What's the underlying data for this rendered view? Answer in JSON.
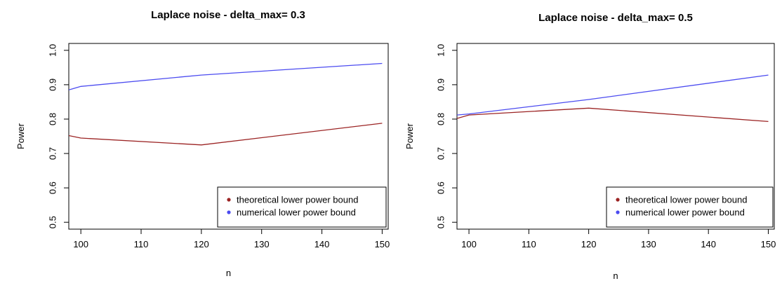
{
  "chart_data": [
    {
      "type": "line",
      "title": "Laplace noise - delta_max= 0.3",
      "xlabel": "n",
      "ylabel": "Power",
      "xlim": [
        98,
        151
      ],
      "ylim": [
        0.5,
        1.0
      ],
      "x_ticks": [
        100,
        110,
        120,
        130,
        140,
        150
      ],
      "y_ticks": [
        0.5,
        0.6,
        0.7,
        0.8,
        0.9,
        1.0
      ],
      "x_tick_labels": [
        "100",
        "110",
        "120",
        "130",
        "140",
        "150"
      ],
      "y_tick_labels": [
        "0.5",
        "0.6",
        "0.7",
        "0.8",
        "0.9",
        "1.0"
      ],
      "legend_position": "bottom-right",
      "series": [
        {
          "name": "theoretical lower power bound",
          "color": "#9b2323",
          "x": [
            98,
            100,
            120,
            150
          ],
          "y": [
            0.752,
            0.745,
            0.725,
            0.788
          ]
        },
        {
          "name": "numerical lower power bound",
          "color": "#4b4bf0",
          "x": [
            98,
            100,
            120,
            150
          ],
          "y": [
            0.885,
            0.895,
            0.928,
            0.962
          ]
        }
      ]
    },
    {
      "type": "line",
      "title": "Laplace noise - delta_max= 0.5",
      "xlabel": "n",
      "ylabel": "Power",
      "xlim": [
        98,
        151
      ],
      "ylim": [
        0.5,
        1.0
      ],
      "x_ticks": [
        100,
        110,
        120,
        130,
        140,
        150
      ],
      "y_ticks": [
        0.5,
        0.6,
        0.7,
        0.8,
        0.9,
        1.0
      ],
      "x_tick_labels": [
        "100",
        "110",
        "120",
        "130",
        "140",
        "150"
      ],
      "y_tick_labels": [
        "0.5",
        "0.6",
        "0.7",
        "0.8",
        "0.9",
        "1.0"
      ],
      "legend_position": "bottom-right",
      "series": [
        {
          "name": "theoretical lower power bound",
          "color": "#9b2323",
          "x": [
            98,
            100,
            120,
            150
          ],
          "y": [
            0.802,
            0.812,
            0.832,
            0.793
          ]
        },
        {
          "name": "numerical lower power bound",
          "color": "#4b4bf0",
          "x": [
            98,
            100,
            120,
            150
          ],
          "y": [
            0.812,
            0.815,
            0.857,
            0.928
          ]
        }
      ]
    }
  ]
}
